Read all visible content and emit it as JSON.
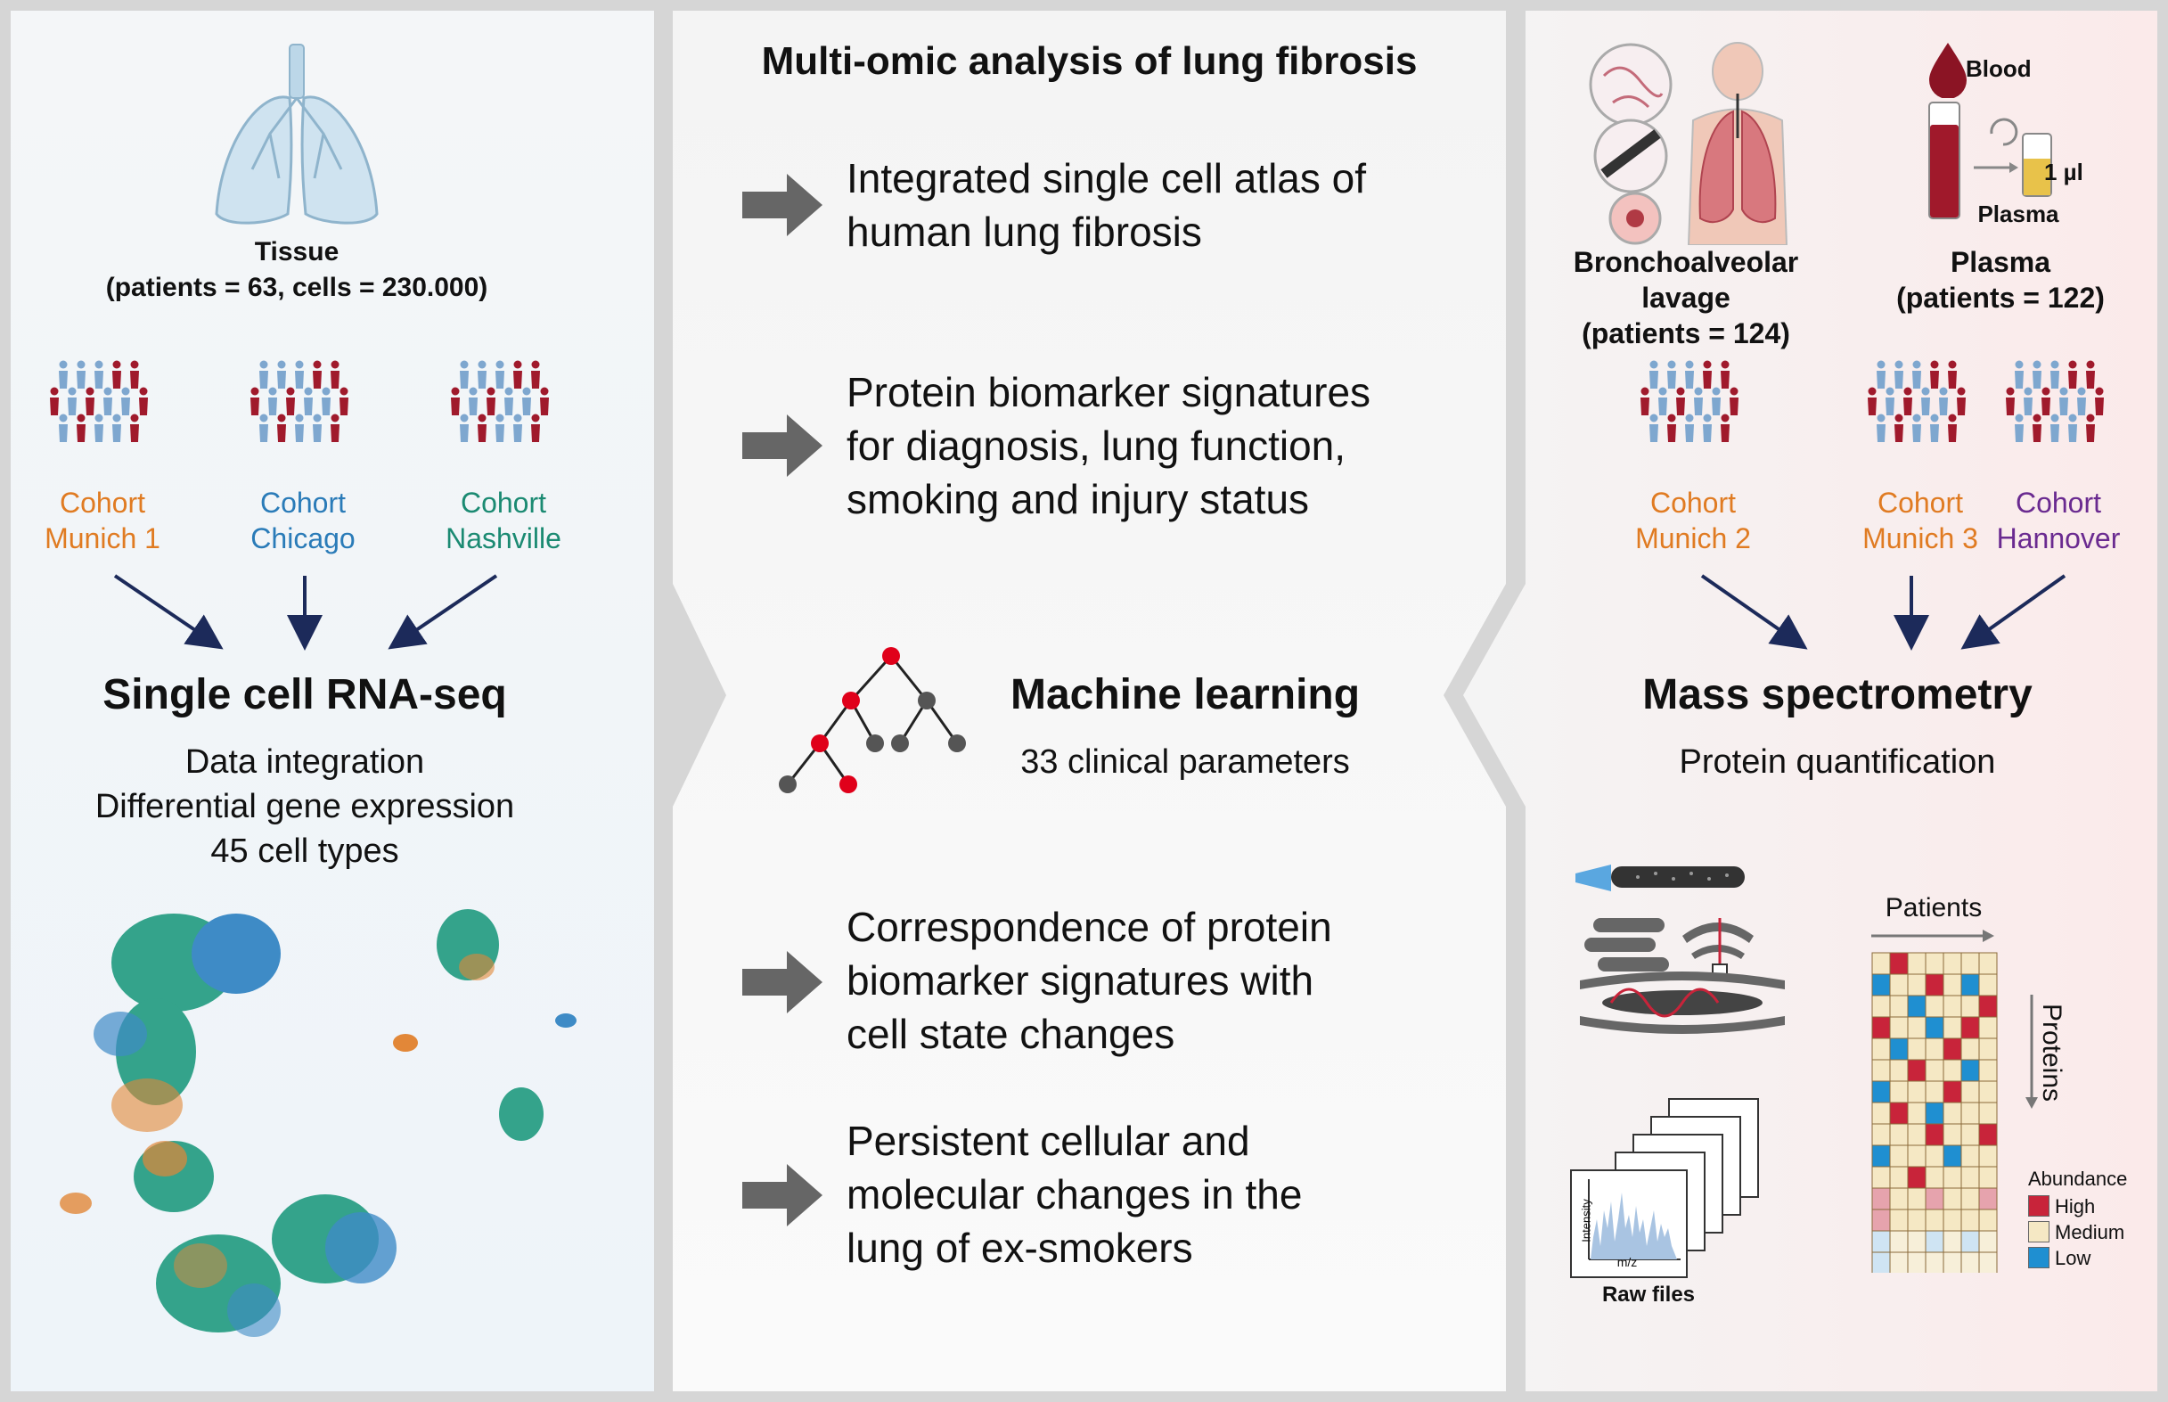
{
  "center": {
    "title": "Multi-omic analysis of lung fibrosis",
    "items": [
      {
        "line1": "Integrated single cell atlas of",
        "line2": "human lung fibrosis"
      },
      {
        "line1": "Protein biomarker signatures",
        "line2": "for diagnosis, lung function,",
        "line3": "smoking and injury status"
      },
      {
        "line1": "Correspondence of protein",
        "line2": "biomarker signatures with",
        "line3": "cell state changes"
      },
      {
        "line1": "Persistent cellular and",
        "line2": "molecular changes in the",
        "line3": "lung of ex-smokers"
      }
    ],
    "ml_title": "Machine learning",
    "ml_sub": "33 clinical parameters"
  },
  "left": {
    "tissue_title": "Tissue",
    "tissue_sub": "(patients = 63, cells = 230.000)",
    "cohorts": [
      {
        "line1": "Cohort",
        "line2": "Munich 1",
        "color": "#e07b22"
      },
      {
        "line1": "Cohort",
        "line2": "Chicago",
        "color": "#2a7bb8"
      },
      {
        "line1": "Cohort",
        "line2": "Nashville",
        "color": "#1b8a72"
      }
    ],
    "method_title": "Single cell RNA-seq",
    "method_lines": [
      "Data integration",
      "Differential gene expression",
      "45 cell types"
    ]
  },
  "right": {
    "blood_label": "Blood",
    "volume_label": "1 µl",
    "plasma_small": "Plasma",
    "bal_lines": [
      "Bronchoalveolar",
      "lavage",
      "(patients = 124)"
    ],
    "plasma_lines": [
      "Plasma",
      "(patients = 122)"
    ],
    "cohorts": [
      {
        "line1": "Cohort",
        "line2": "Munich 2",
        "color": "#e07b22"
      },
      {
        "line1": "Cohort",
        "line2": "Munich 3",
        "color": "#e07b22"
      },
      {
        "line1": "Cohort",
        "line2": "Hannover",
        "color": "#6a2a90"
      }
    ],
    "method_title": "Mass spectrometry",
    "method_sub": "Protein quantification",
    "patients_label": "Patients",
    "proteins_label": "Proteins",
    "intensity_label": "Intensity",
    "mz_label": "m/z",
    "raw_files_label": "Raw files",
    "legend_title": "Abundance",
    "legend": [
      {
        "label": "High",
        "color": "#c8243a"
      },
      {
        "label": "Medium",
        "color": "#f5e8c4"
      },
      {
        "label": "Low",
        "color": "#1f8fd1"
      }
    ]
  }
}
